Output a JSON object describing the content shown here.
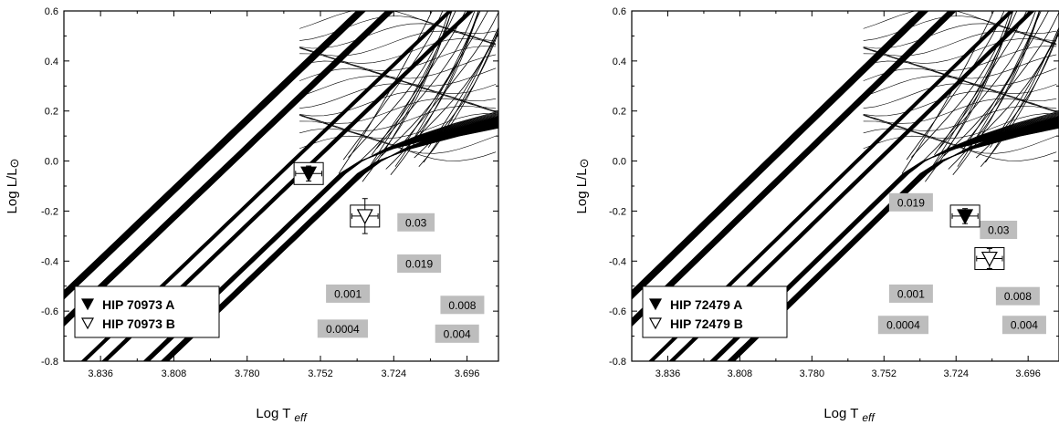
{
  "chart_data": [
    {
      "type": "line",
      "panel": "left",
      "xlabel": "Log T",
      "xlabel_sub": "eff",
      "ylabel": "Log L/L",
      "ylabel_symbol": "⊙",
      "xlim": [
        3.85,
        3.684
      ],
      "ylim": [
        -0.8,
        0.6
      ],
      "x_reversed": true,
      "xticks": [
        "3.836",
        "3.808",
        "3.780",
        "3.752",
        "3.724",
        "3.696"
      ],
      "yticks": [
        "-0.8",
        "-0.6",
        "-0.4",
        "-0.2",
        "0.0",
        "0.2",
        "0.4",
        "0.6"
      ],
      "grid": false,
      "legend_position": "bottom-left",
      "legend": [
        {
          "symbol": "▼",
          "label": "HIP 70973  A"
        },
        {
          "symbol": "▽",
          "label": "HIP 70973 B"
        }
      ],
      "stars": [
        {
          "name": "A",
          "filled": true,
          "logT": 3.7565,
          "logL": -0.05,
          "err_logT": 0.005,
          "err_logL": 0.03
        },
        {
          "name": "B",
          "filled": false,
          "logT": 3.735,
          "logL": -0.22,
          "err_logT": 0.005,
          "err_logL": 0.07
        }
      ],
      "metallicity_labels": [
        {
          "text": "0.03",
          "logT": 3.7155,
          "logL": -0.245
        },
        {
          "text": "0.019",
          "logT": 3.7143,
          "logL": -0.41
        },
        {
          "text": "0.001",
          "logT": 3.7415,
          "logL": -0.53
        },
        {
          "text": "0.008",
          "logT": 3.6978,
          "logL": -0.575
        },
        {
          "text": "0.0004",
          "logT": 3.7435,
          "logL": -0.67
        },
        {
          "text": "0.004",
          "logT": 3.6998,
          "logL": -0.69
        }
      ]
    },
    {
      "type": "line",
      "panel": "right",
      "xlabel": "Log T",
      "xlabel_sub": "eff",
      "ylabel": "Log L/L",
      "ylabel_symbol": "⊙",
      "xlim": [
        3.85,
        3.684
      ],
      "ylim": [
        -0.8,
        0.6
      ],
      "x_reversed": true,
      "xticks": [
        "3.836",
        "3.808",
        "3.780",
        "3.752",
        "3.724",
        "3.696"
      ],
      "yticks": [
        "-0.8",
        "-0.6",
        "-0.4",
        "-0.2",
        "0.0",
        "0.2",
        "0.4",
        "0.6"
      ],
      "grid": false,
      "legend_position": "bottom-left",
      "legend": [
        {
          "symbol": "▼",
          "label": "HIP 72479 A"
        },
        {
          "symbol": "▽",
          "label": "HIP 72479 B"
        }
      ],
      "stars": [
        {
          "name": "A",
          "filled": true,
          "logT": 3.7205,
          "logL": -0.22,
          "err_logT": 0.005,
          "err_logL": 0.03
        },
        {
          "name": "B",
          "filled": false,
          "logT": 3.711,
          "logL": -0.39,
          "err_logT": 0.005,
          "err_logL": 0.04
        }
      ],
      "metallicity_labels": [
        {
          "text": "0.019",
          "logT": 3.7415,
          "logL": -0.165
        },
        {
          "text": "0.03",
          "logT": 3.7075,
          "logL": -0.275
        },
        {
          "text": "0.001",
          "logT": 3.7415,
          "logL": -0.53
        },
        {
          "text": "0.008",
          "logT": 3.7,
          "logL": -0.54
        },
        {
          "text": "0.0004",
          "logT": 3.7445,
          "logL": -0.655
        },
        {
          "text": "0.004",
          "logT": 3.6975,
          "logL": -0.655
        }
      ]
    }
  ]
}
